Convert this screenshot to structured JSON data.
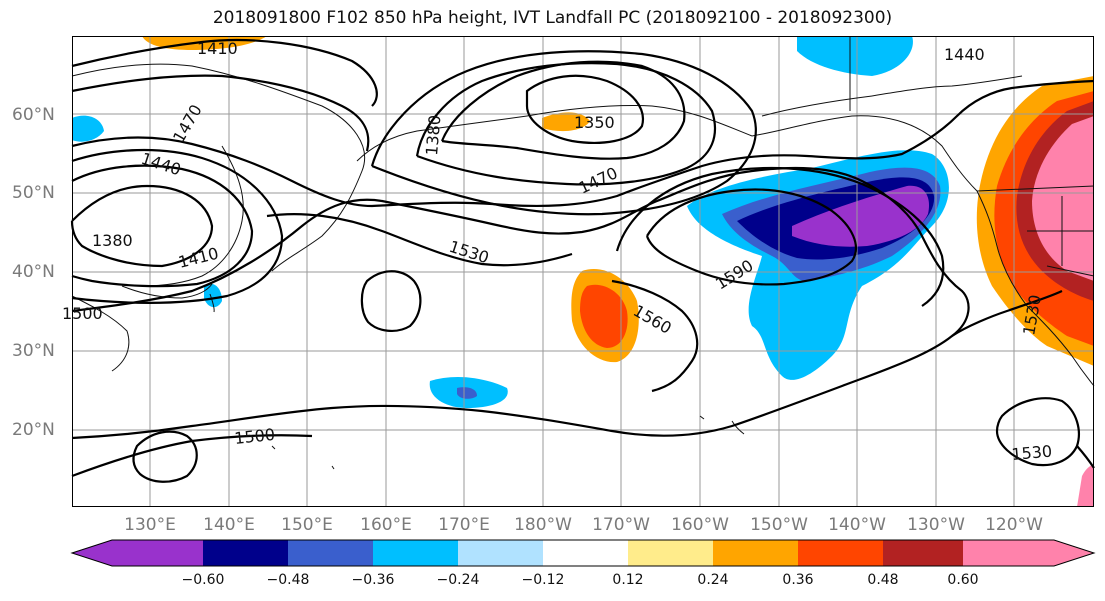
{
  "title": "2018091800 F102 850 hPa height, IVT Landfall PC (2018092100 - 2018092300)",
  "map": {
    "lat_labels": [
      "60°N",
      "50°N",
      "40°N",
      "30°N",
      "20°N"
    ],
    "lon_labels": [
      "130°E",
      "140°E",
      "150°E",
      "160°E",
      "170°E",
      "180°W",
      "170°W",
      "160°W",
      "150°W",
      "140°W",
      "130°W",
      "120°W"
    ],
    "contour_labels": [
      "1410",
      "1440",
      "1350",
      "1380",
      "1470",
      "1440",
      "1380",
      "1410",
      "1530",
      "1470",
      "1590",
      "1560",
      "1500",
      "1500",
      "1530",
      "1530"
    ]
  },
  "colorbar": {
    "ticks": [
      "−0.60",
      "−0.48",
      "−0.36",
      "−0.24",
      "−0.12",
      "0.12",
      "0.24",
      "0.36",
      "0.48",
      "0.60"
    ],
    "colors": [
      "#9932cc",
      "#00008b",
      "#3a5fcd",
      "#00bfff",
      "#b0e2ff",
      "#ffffff",
      "#ffec8b",
      "#ffa500",
      "#ff4500",
      "#b22222",
      "#ff82ab"
    ]
  }
}
